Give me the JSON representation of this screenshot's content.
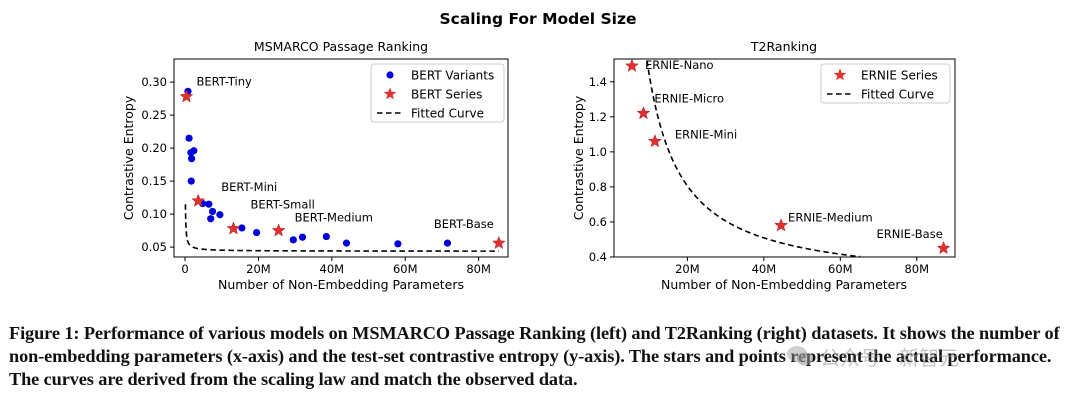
{
  "figure": {
    "suptitle": "Scaling For Model Size",
    "caption_label": "Figure 1:",
    "caption_text": "Performance of various models on MSMARCO Passage Ranking (left) and T2Ranking (right) datasets. It shows the number of non-embedding parameters (x-axis) and the test-set contrastive entropy (y-axis). The stars and points represent the actual performance. The curves are derived from the scaling law and match the observed data.",
    "watermark": "公众号 · 新智元"
  },
  "colors": {
    "points": "#0000dd",
    "stars": "#e03030",
    "curve": "#000000"
  },
  "chart_data": [
    {
      "type": "scatter",
      "title": "MSMARCO Passage Ranking",
      "xlabel": "Number of Non-Embedding Parameters",
      "ylabel": "Contrastive Entropy",
      "xlim": [
        -3,
        88
      ],
      "ylim": [
        0.035,
        0.335
      ],
      "xticks": [
        0,
        20,
        40,
        60,
        80
      ],
      "xticklabels": [
        "0",
        "20M",
        "40M",
        "60M",
        "80M"
      ],
      "yticks": [
        0.05,
        0.1,
        0.15,
        0.2,
        0.25,
        0.3
      ],
      "yticklabels": [
        "0.05",
        "0.10",
        "0.15",
        "0.20",
        "0.25",
        "0.30"
      ],
      "legend_position": "top-right",
      "legend": [
        {
          "label": "BERT Variants",
          "marker": "circle"
        },
        {
          "label": "BERT Series",
          "marker": "star"
        },
        {
          "label": "Fitted Curve",
          "marker": "dashed-line"
        }
      ],
      "points": [
        {
          "x": 0.8,
          "y": 0.286
        },
        {
          "x": 1.1,
          "y": 0.215
        },
        {
          "x": 1.6,
          "y": 0.193
        },
        {
          "x": 1.8,
          "y": 0.184
        },
        {
          "x": 2.4,
          "y": 0.196
        },
        {
          "x": 1.7,
          "y": 0.15
        },
        {
          "x": 4.8,
          "y": 0.116
        },
        {
          "x": 6.5,
          "y": 0.115
        },
        {
          "x": 7.5,
          "y": 0.104
        },
        {
          "x": 9.5,
          "y": 0.099
        },
        {
          "x": 7.0,
          "y": 0.093
        },
        {
          "x": 15.5,
          "y": 0.079
        },
        {
          "x": 19.5,
          "y": 0.072
        },
        {
          "x": 29.5,
          "y": 0.061
        },
        {
          "x": 32.0,
          "y": 0.065
        },
        {
          "x": 38.5,
          "y": 0.066
        },
        {
          "x": 44.0,
          "y": 0.056
        },
        {
          "x": 58.0,
          "y": 0.055
        },
        {
          "x": 71.5,
          "y": 0.056
        }
      ],
      "stars": [
        {
          "x": 0.4,
          "y": 0.278,
          "label": "BERT-Tiny"
        },
        {
          "x": 3.6,
          "y": 0.12,
          "label": "BERT-Mini"
        },
        {
          "x": 13.2,
          "y": 0.078,
          "label": "BERT-Small"
        },
        {
          "x": 25.5,
          "y": 0.075,
          "label": "BERT-Medium"
        },
        {
          "x": 85.5,
          "y": 0.056,
          "label": "BERT-Base"
        }
      ],
      "curve": {
        "a": 0.0436,
        "k": 0.012,
        "b": 0.84,
        "x_start": 0.12,
        "x_end": 85.5
      }
    },
    {
      "type": "scatter",
      "title": "T2Ranking",
      "xlabel": "Number of Non-Embedding Parameters",
      "ylabel": "Contrastive Entropy",
      "xlim": [
        0.8,
        90
      ],
      "ylim": [
        0.4,
        1.53
      ],
      "xticks": [
        20,
        40,
        60,
        80
      ],
      "xticklabels": [
        "20M",
        "40M",
        "60M",
        "80M"
      ],
      "yticks": [
        0.4,
        0.6,
        0.8,
        1.0,
        1.2,
        1.4
      ],
      "yticklabels": [
        "0.4",
        "0.6",
        "0.8",
        "1.0",
        "1.2",
        "1.4"
      ],
      "legend_position": "top-right",
      "legend": [
        {
          "label": "ERNIE Series",
          "marker": "star"
        },
        {
          "label": "Fitted Curve",
          "marker": "dashed-line"
        }
      ],
      "points": [],
      "stars": [
        {
          "x": 5.5,
          "y": 1.49,
          "label": "ERNIE-Nano"
        },
        {
          "x": 8.5,
          "y": 1.22,
          "label": "ERNIE-Micro"
        },
        {
          "x": 11.5,
          "y": 1.06,
          "label": "ERNIE-Mini"
        },
        {
          "x": 44.5,
          "y": 0.58,
          "label": "ERNIE-Medium"
        },
        {
          "x": 87.0,
          "y": 0.45,
          "label": "ERNIE-Base"
        }
      ],
      "curve": {
        "a": 0.25,
        "k": 15.0,
        "b": 1.1,
        "x_start": 5.5,
        "x_end": 87.0
      }
    }
  ]
}
